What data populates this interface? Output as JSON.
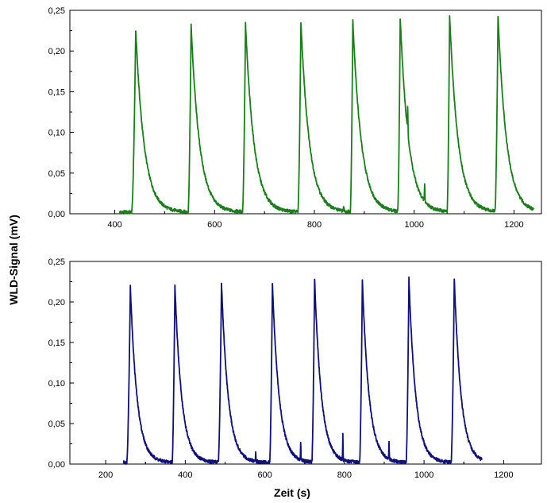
{
  "figure": {
    "ylabel": "WLD-Signal (mV)",
    "xlabel": "Zeit (s)"
  },
  "chart_data": [
    {
      "type": "line",
      "title": "",
      "xlabel": "",
      "ylabel": "WLD-Signal (mV)",
      "xlim": [
        310,
        1255
      ],
      "ylim": [
        0,
        0.25
      ],
      "xticks": [
        400,
        600,
        800,
        1000,
        1200
      ],
      "xtick_labels": [
        "400",
        "600",
        "800",
        "1000",
        "1200"
      ],
      "yticks": [
        0,
        0.05,
        0.1,
        0.15,
        0.2,
        0.25
      ],
      "ytick_labels": [
        "0,00",
        "0,05",
        "0,10",
        "0,15",
        "0,20",
        "0,25"
      ],
      "grid": false,
      "legend": "none",
      "color": "#1a7f1a",
      "x_range": [
        410,
        1240
      ],
      "peaks": [
        {
          "start": 434,
          "apex": 442,
          "height": 0.224
        },
        {
          "start": 547,
          "apex": 553,
          "height": 0.229
        },
        {
          "start": 656,
          "apex": 662,
          "height": 0.231
        },
        {
          "start": 767,
          "apex": 773,
          "height": 0.234
        },
        {
          "start": 872,
          "apex": 877,
          "height": 0.236
        },
        {
          "start": 967,
          "apex": 972,
          "height": 0.238
        },
        {
          "start": 1066,
          "apex": 1071,
          "height": 0.241
        },
        {
          "start": 1162,
          "apex": 1168,
          "height": 0.241
        }
      ],
      "spikes": [
        {
          "x": 987,
          "height": 0.029
        },
        {
          "x": 1021,
          "height": 0.021
        },
        {
          "x": 859,
          "height": 0.006
        }
      ]
    },
    {
      "type": "line",
      "title": "",
      "xlabel": "Zeit (s)",
      "ylabel": "WLD-Signal (mV)",
      "xlim": [
        110,
        1295
      ],
      "ylim": [
        0,
        0.25
      ],
      "xticks": [
        200,
        400,
        600,
        800,
        1000,
        1200
      ],
      "xtick_labels": [
        "200",
        "400",
        "600",
        "800",
        "1000",
        "1200"
      ],
      "yticks": [
        0,
        0.05,
        0.1,
        0.15,
        0.2,
        0.25
      ],
      "ytick_labels": [
        "0,00",
        "0,05",
        "0,10",
        "0,15",
        "0,20",
        "0,25"
      ],
      "grid": false,
      "legend": "none",
      "color": "#10107a",
      "x_range": [
        245,
        1145
      ],
      "peaks": [
        {
          "start": 253,
          "apex": 262,
          "height": 0.217
        },
        {
          "start": 367,
          "apex": 374,
          "height": 0.219
        },
        {
          "start": 483,
          "apex": 491,
          "height": 0.221
        },
        {
          "start": 612,
          "apex": 619,
          "height": 0.221
        },
        {
          "start": 718,
          "apex": 725,
          "height": 0.227
        },
        {
          "start": 838,
          "apex": 845,
          "height": 0.224
        },
        {
          "start": 955,
          "apex": 962,
          "height": 0.227
        },
        {
          "start": 1068,
          "apex": 1076,
          "height": 0.227
        }
      ],
      "spikes": [
        {
          "x": 577,
          "height": 0.011
        },
        {
          "x": 690,
          "height": 0.023
        },
        {
          "x": 796,
          "height": 0.031
        },
        {
          "x": 912,
          "height": 0.023
        }
      ]
    }
  ]
}
